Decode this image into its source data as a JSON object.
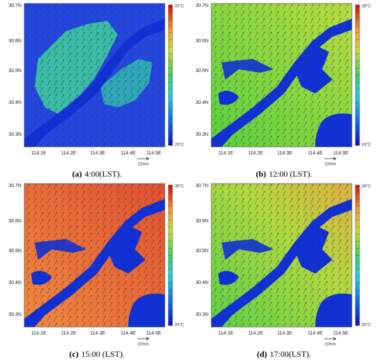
{
  "panels": [
    {
      "label": "(a)",
      "caption": "4:00(LST).",
      "colorbar_max": "33°C",
      "colorbar_min": "28°C",
      "scale_label": "10m/s",
      "y_ticks": [
        "30.7N",
        "30.6N",
        "30.5N",
        "30.4N",
        "30.3N"
      ],
      "x_ticks": [
        "114.1E",
        "114.2E",
        "114.3E",
        "114.4E",
        "114.5E"
      ]
    },
    {
      "label": "(b)",
      "caption": "12:00 (LST).",
      "colorbar_max": "38°C",
      "colorbar_min": "33°C",
      "scale_label": "10m/s",
      "y_ticks": [
        "30.7N",
        "30.6N",
        "30.5N",
        "30.4N",
        "30.3N"
      ],
      "x_ticks": [
        "114.1E",
        "114.2E",
        "114.3E",
        "114.4E",
        "114.5E"
      ]
    },
    {
      "label": "(c)",
      "caption": "15:00 (LST).",
      "colorbar_max": "38°C",
      "colorbar_min": "33°C",
      "scale_label": "10m/s",
      "y_ticks": [
        "30.7N",
        "30.6N",
        "30.5N",
        "30.4N",
        "30.3N"
      ],
      "x_ticks": [
        "114.1E",
        "114.2E",
        "114.3E",
        "114.4E",
        "114.5E"
      ]
    },
    {
      "label": "(d)",
      "caption": "17:00(LST).",
      "colorbar_max": "38°C",
      "colorbar_min": "33°C",
      "scale_label": "10m/s",
      "y_ticks": [
        "30.7N",
        "30.6N",
        "30.5N",
        "30.4N",
        "30.3N"
      ],
      "x_ticks": [
        "114.1E",
        "114.2E",
        "114.3E",
        "114.4E",
        "114.5E"
      ]
    }
  ]
}
